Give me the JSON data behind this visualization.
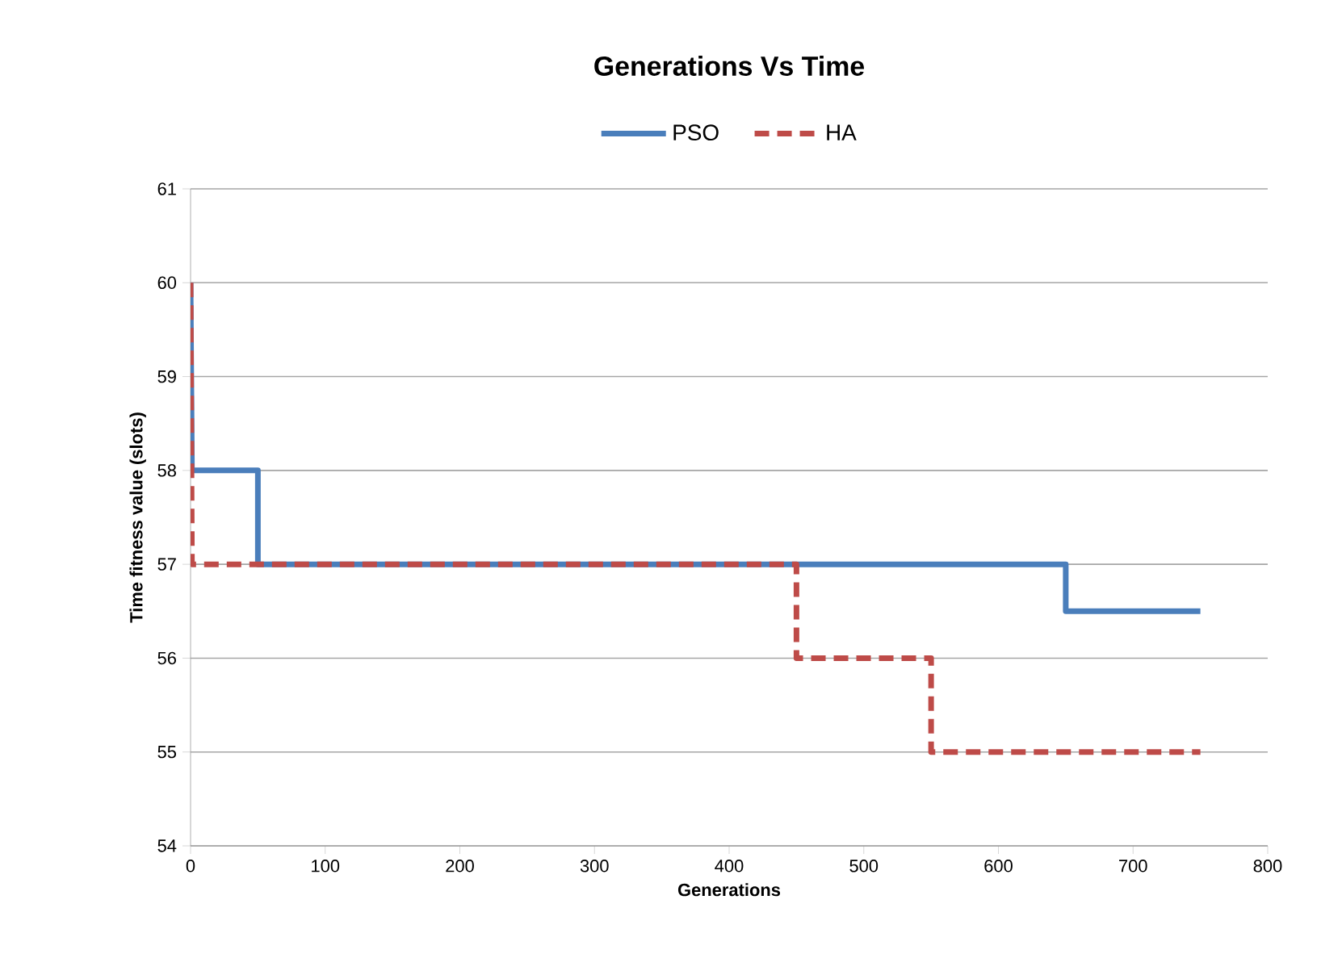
{
  "chart_data": {
    "type": "line",
    "title": "Generations Vs Time",
    "xlabel": "Generations",
    "ylabel": "Time fitness value (slots)",
    "xlim": [
      0,
      800
    ],
    "xticks": [
      0,
      100,
      200,
      300,
      400,
      500,
      600,
      700,
      800
    ],
    "ylim": [
      54,
      61
    ],
    "yticks": [
      54,
      55,
      56,
      57,
      58,
      59,
      60,
      61
    ],
    "grid": "y",
    "legend": "top",
    "marker": "none",
    "series": [
      {
        "name": "PSO",
        "color": "#4a7ebb",
        "line_style": "solid",
        "x": [
          0,
          1,
          50,
          50,
          650,
          650,
          750
        ],
        "values": [
          60,
          58,
          58,
          57,
          57,
          56.5,
          56.5
        ]
      },
      {
        "name": "HA",
        "color": "#be4b48",
        "line_style": "dashed",
        "x": [
          0,
          1,
          450,
          450,
          550,
          550,
          750
        ],
        "values": [
          60,
          57,
          57,
          56,
          56,
          55,
          55
        ]
      }
    ]
  }
}
